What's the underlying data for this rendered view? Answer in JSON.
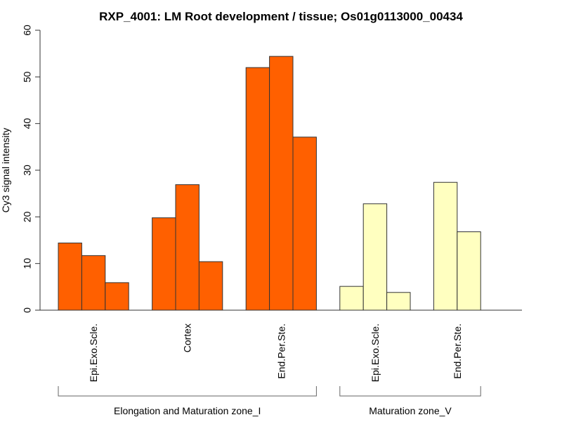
{
  "chart_data": {
    "type": "bar",
    "title": "RXP_4001: LM Root development / tissue; Os01g0113000_00434",
    "xlabel": "",
    "ylabel": "Cy3 signal intensity",
    "ylim": [
      0,
      60
    ],
    "yticks": [
      0,
      10,
      20,
      30,
      40,
      50,
      60
    ],
    "grid": false,
    "legend": "none",
    "colors": {
      "Elongation and Maturation zone_I": "#FF6000",
      "Maturation zone_V": "#FFFFC0"
    },
    "groups": [
      {
        "zone": "Elongation and Maturation zone_I",
        "categories": [
          {
            "label": "Epi.Exo.Scle.",
            "values": [
              14.4,
              11.7,
              5.9
            ]
          },
          {
            "label": "Cortex",
            "values": [
              19.8,
              26.9,
              10.4
            ]
          },
          {
            "label": "End.Per.Ste.",
            "values": [
              52.0,
              54.4,
              37.1
            ]
          }
        ]
      },
      {
        "zone": "Maturation zone_V",
        "categories": [
          {
            "label": "Epi.Exo.Scle.",
            "values": [
              5.1,
              22.8,
              3.8
            ]
          },
          {
            "label": "End.Per.Ste.",
            "values": [
              27.4,
              16.8
            ]
          }
        ]
      }
    ]
  }
}
